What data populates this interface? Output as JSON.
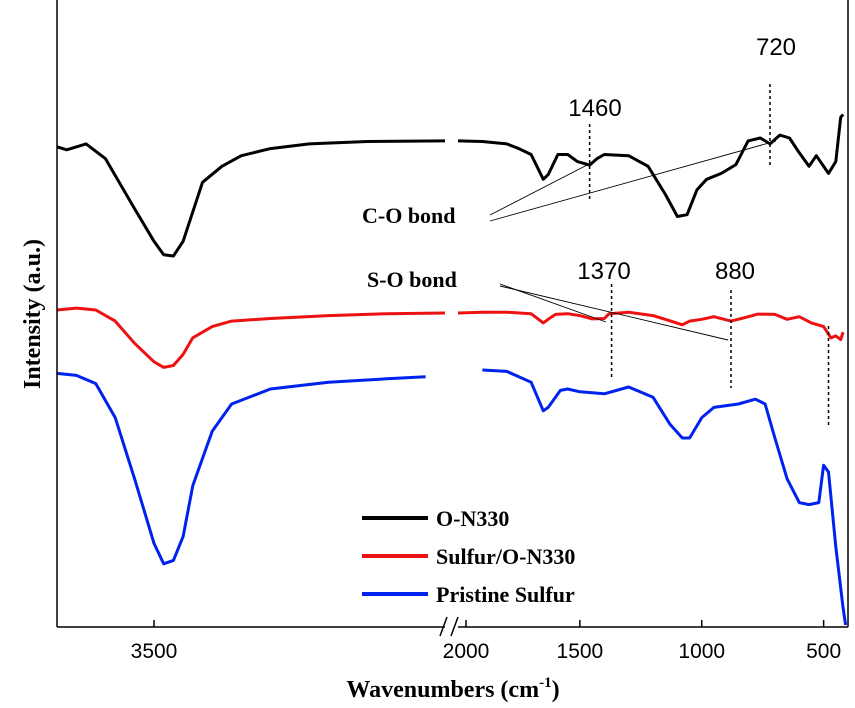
{
  "chart_data": {
    "type": "line",
    "title": "",
    "xlabel": "Wavenumbers (cm",
    "xlabel_sup": "-1",
    "xlabel_close": ")",
    "ylabel": "Intensity (a.u.)",
    "x_axis_break": true,
    "x_segments": [
      {
        "xlim": [
          4000,
          2000
        ],
        "ticks": [
          3500
        ]
      },
      {
        "xlim": [
          2000,
          400
        ],
        "ticks": [
          2000,
          1500,
          1000,
          500
        ]
      }
    ],
    "grid": false,
    "legend_position": "bottom-center",
    "series": [
      {
        "name": "O-N330",
        "color": "#000000",
        "points": [
          [
            4000,
            0.15
          ],
          [
            3950,
            0.2
          ],
          [
            3850,
            0.1
          ],
          [
            3750,
            0.35
          ],
          [
            3600,
            1.2
          ],
          [
            3500,
            1.75
          ],
          [
            3450,
            1.98
          ],
          [
            3400,
            2.0
          ],
          [
            3350,
            1.75
          ],
          [
            3300,
            1.25
          ],
          [
            3250,
            0.75
          ],
          [
            3150,
            0.48
          ],
          [
            3050,
            0.3
          ],
          [
            2900,
            0.18
          ],
          [
            2700,
            0.1
          ],
          [
            2400,
            0.06
          ],
          [
            2000,
            0.05
          ],
          [
            1900,
            0.06
          ],
          [
            1800,
            0.1
          ],
          [
            1750,
            0.18
          ],
          [
            1700,
            0.28
          ],
          [
            1650,
            0.7
          ],
          [
            1630,
            0.62
          ],
          [
            1590,
            0.28
          ],
          [
            1550,
            0.28
          ],
          [
            1510,
            0.4
          ],
          [
            1460,
            0.46
          ],
          [
            1430,
            0.35
          ],
          [
            1400,
            0.28
          ],
          [
            1300,
            0.3
          ],
          [
            1220,
            0.48
          ],
          [
            1150,
            0.95
          ],
          [
            1100,
            1.33
          ],
          [
            1060,
            1.3
          ],
          [
            1020,
            0.88
          ],
          [
            980,
            0.7
          ],
          [
            920,
            0.6
          ],
          [
            860,
            0.45
          ],
          [
            810,
            0.05
          ],
          [
            760,
            0.0
          ],
          [
            720,
            0.1
          ],
          [
            680,
            -0.05
          ],
          [
            640,
            0.0
          ],
          [
            600,
            0.25
          ],
          [
            560,
            0.48
          ],
          [
            530,
            0.3
          ],
          [
            480,
            0.6
          ],
          [
            450,
            0.4
          ],
          [
            430,
            -0.35
          ],
          [
            420,
            -0.4
          ]
        ]
      },
      {
        "name": "Sulfur/O-N330",
        "color": "#ee1111",
        "points": [
          [
            4000,
            3.6
          ],
          [
            3900,
            3.55
          ],
          [
            3800,
            3.6
          ],
          [
            3700,
            3.9
          ],
          [
            3600,
            4.5
          ],
          [
            3500,
            5.0
          ],
          [
            3450,
            5.15
          ],
          [
            3400,
            5.1
          ],
          [
            3350,
            4.8
          ],
          [
            3300,
            4.35
          ],
          [
            3200,
            4.05
          ],
          [
            3100,
            3.9
          ],
          [
            2900,
            3.83
          ],
          [
            2600,
            3.75
          ],
          [
            2300,
            3.7
          ],
          [
            2000,
            3.68
          ],
          [
            1900,
            3.66
          ],
          [
            1800,
            3.66
          ],
          [
            1700,
            3.7
          ],
          [
            1650,
            3.95
          ],
          [
            1630,
            3.85
          ],
          [
            1600,
            3.72
          ],
          [
            1550,
            3.7
          ],
          [
            1500,
            3.75
          ],
          [
            1450,
            3.84
          ],
          [
            1400,
            3.83
          ],
          [
            1380,
            3.7
          ],
          [
            1300,
            3.66
          ],
          [
            1200,
            3.75
          ],
          [
            1150,
            3.85
          ],
          [
            1080,
            4.0
          ],
          [
            1050,
            3.9
          ],
          [
            1000,
            3.85
          ],
          [
            950,
            3.78
          ],
          [
            880,
            3.9
          ],
          [
            820,
            3.8
          ],
          [
            770,
            3.71
          ],
          [
            700,
            3.72
          ],
          [
            650,
            3.85
          ],
          [
            600,
            3.78
          ],
          [
            550,
            3.95
          ],
          [
            500,
            4.05
          ],
          [
            470,
            4.35
          ],
          [
            450,
            4.3
          ],
          [
            430,
            4.4
          ],
          [
            420,
            4.2
          ]
        ]
      },
      {
        "name": "Pristine Sulfur",
        "color": "#0022ee",
        "points": [
          [
            4000,
            4.45
          ],
          [
            3900,
            4.48
          ],
          [
            3800,
            4.6
          ],
          [
            3700,
            5.1
          ],
          [
            3600,
            6.0
          ],
          [
            3500,
            6.95
          ],
          [
            3450,
            7.25
          ],
          [
            3400,
            7.2
          ],
          [
            3350,
            6.85
          ],
          [
            3300,
            6.1
          ],
          [
            3200,
            5.3
          ],
          [
            3100,
            4.9
          ],
          [
            2900,
            4.68
          ],
          [
            2600,
            4.58
          ],
          [
            2300,
            4.53
          ],
          [
            2100,
            4.5
          ],
          [
            1900,
            4.4
          ],
          [
            1800,
            4.42
          ],
          [
            1700,
            4.58
          ],
          [
            1650,
            5.0
          ],
          [
            1630,
            4.95
          ],
          [
            1580,
            4.7
          ],
          [
            1550,
            4.68
          ],
          [
            1500,
            4.72
          ],
          [
            1400,
            4.75
          ],
          [
            1300,
            4.65
          ],
          [
            1200,
            4.8
          ],
          [
            1130,
            5.2
          ],
          [
            1080,
            5.4
          ],
          [
            1050,
            5.4
          ],
          [
            1000,
            5.1
          ],
          [
            950,
            4.95
          ],
          [
            850,
            4.9
          ],
          [
            780,
            4.83
          ],
          [
            740,
            4.9
          ],
          [
            700,
            5.4
          ],
          [
            650,
            6.0
          ],
          [
            600,
            6.35
          ],
          [
            560,
            6.38
          ],
          [
            520,
            6.35
          ],
          [
            500,
            5.8
          ],
          [
            480,
            5.9
          ],
          [
            450,
            7.0
          ],
          [
            420,
            7.9
          ],
          [
            410,
            8.2
          ]
        ]
      }
    ],
    "peak_labels": [
      {
        "text": "1460",
        "x": 1460
      },
      {
        "text": "720",
        "x": 720
      },
      {
        "text": "1370",
        "x": 1370
      },
      {
        "text": "880",
        "x": 880
      }
    ],
    "annotations": [
      {
        "text": "C-O bond",
        "targets": [
          1460,
          720
        ]
      },
      {
        "text": "S-O bond",
        "targets": [
          1370,
          880
        ]
      }
    ]
  }
}
